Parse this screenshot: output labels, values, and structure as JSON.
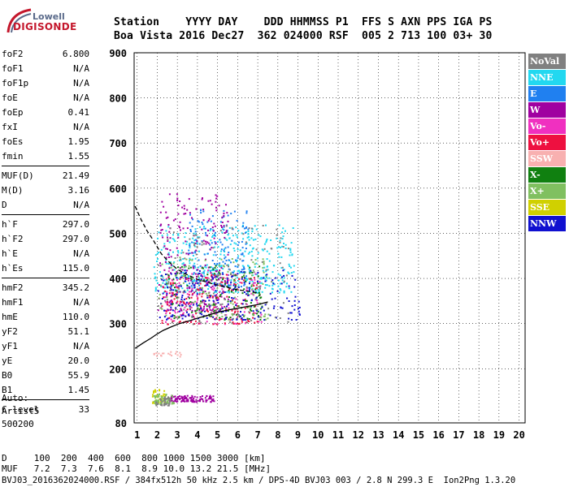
{
  "logo": {
    "line1": "Lowell",
    "line2": "DIGISONDE"
  },
  "header": {
    "labels": "Station    YYYY DAY    DDD HHMMSS P1  FFS S AXN PPS IGA PS",
    "values": "Boa Vista 2016 Dec27  362 024000 RSF  005 2 713 100 03+ 30"
  },
  "params_groups": [
    [
      {
        "k": "foF2",
        "v": "6.800"
      },
      {
        "k": "foF1",
        "v": "N/A"
      },
      {
        "k": "foF1p",
        "v": "N/A"
      },
      {
        "k": "foE",
        "v": "N/A"
      },
      {
        "k": "foEp",
        "v": "0.41"
      },
      {
        "k": "fxI",
        "v": "N/A"
      },
      {
        "k": "foEs",
        "v": "1.95"
      },
      {
        "k": "fmin",
        "v": "1.55"
      }
    ],
    [
      {
        "k": "MUF(D)",
        "v": "21.49"
      },
      {
        "k": "M(D)",
        "v": "3.16"
      },
      {
        "k": "D",
        "v": "N/A"
      }
    ],
    [
      {
        "k": "h`F",
        "v": "297.0"
      },
      {
        "k": "h`F2",
        "v": "297.0"
      },
      {
        "k": "h`E",
        "v": "N/A"
      },
      {
        "k": "h`Es",
        "v": "115.0"
      }
    ],
    [
      {
        "k": "hmF2",
        "v": "345.2"
      },
      {
        "k": "hmF1",
        "v": "N/A"
      },
      {
        "k": "hmE",
        "v": "110.0"
      },
      {
        "k": "yF2",
        "v": "51.1"
      },
      {
        "k": "yF1",
        "v": "N/A"
      },
      {
        "k": "yE",
        "v": "20.0"
      },
      {
        "k": "B0",
        "v": "55.9"
      },
      {
        "k": "B1",
        "v": "1.45"
      }
    ],
    [
      {
        "k": "C-level",
        "v": "33"
      }
    ]
  ],
  "auto": {
    "line1": "Auto:",
    "line2": "Artist5",
    "line3": "500200"
  },
  "legend": [
    {
      "label": "NoVal",
      "color": "#808080"
    },
    {
      "label": "NNE",
      "color": "#22d8f0"
    },
    {
      "label": "E",
      "color": "#2080f0"
    },
    {
      "label": "W",
      "color": "#a000a0"
    },
    {
      "label": "Vo-",
      "color": "#f030c0"
    },
    {
      "label": "Vo+",
      "color": "#ee1040"
    },
    {
      "label": "SSW",
      "color": "#f8b0b0"
    },
    {
      "label": "X-",
      "color": "#108010"
    },
    {
      "label": "X+",
      "color": "#80c060"
    },
    {
      "label": "SSE",
      "color": "#d0d000"
    },
    {
      "label": "NNW",
      "color": "#1010d0"
    }
  ],
  "chart_data": {
    "type": "scatter",
    "x_ticks": [
      "1",
      "2",
      "3",
      "4",
      "5",
      "6",
      "7",
      "8",
      "9",
      "10",
      "11",
      "12",
      "13",
      "14",
      "15",
      "16",
      "17",
      "18",
      "19",
      "20"
    ],
    "y_ticks": [
      "80",
      "200",
      "300",
      "400",
      "500",
      "600",
      "700",
      "800",
      "900"
    ],
    "xlim": [
      0.85,
      20.3
    ],
    "ylim": [
      80,
      900
    ],
    "grid": true,
    "legend_position": "right",
    "clusters": [
      {
        "series": "NNE",
        "x_range": [
          1.8,
          8.8
        ],
        "y_range": [
          370,
          520
        ],
        "count": 420
      },
      {
        "series": "E",
        "x_range": [
          3.5,
          6.5
        ],
        "y_range": [
          380,
          560
        ],
        "count": 160
      },
      {
        "series": "W",
        "x_range": [
          2.0,
          5.5
        ],
        "y_range": [
          330,
          590
        ],
        "count": 260
      },
      {
        "series": "Vo-",
        "x_range": [
          2.3,
          7.2
        ],
        "y_range": [
          300,
          420
        ],
        "count": 140
      },
      {
        "series": "Vo+",
        "x_range": [
          2.2,
          7.0
        ],
        "y_range": [
          300,
          410
        ],
        "count": 160
      },
      {
        "series": "X-",
        "x_range": [
          2.4,
          7.2
        ],
        "y_range": [
          310,
          430
        ],
        "count": 140
      },
      {
        "series": "X+",
        "x_range": [
          2.0,
          7.5
        ],
        "y_range": [
          310,
          450
        ],
        "count": 120
      },
      {
        "series": "NNW",
        "x_range": [
          2.0,
          9.2
        ],
        "y_range": [
          310,
          420
        ],
        "count": 220
      },
      {
        "series": "NoVal",
        "x_range": [
          2.0,
          8.5
        ],
        "y_range": [
          300,
          520
        ],
        "count": 120
      },
      {
        "series": "SSE",
        "x_range": [
          1.7,
          2.4
        ],
        "y_range": [
          125,
          155
        ],
        "count": 40
      },
      {
        "series": "W",
        "x_range": [
          2.5,
          4.8
        ],
        "y_range": [
          128,
          142
        ],
        "count": 110
      },
      {
        "series": "X+",
        "x_range": [
          1.8,
          2.8
        ],
        "y_range": [
          123,
          145
        ],
        "count": 60
      },
      {
        "series": "NoVal",
        "x_range": [
          1.9,
          2.6
        ],
        "y_range": [
          120,
          140
        ],
        "count": 40
      },
      {
        "series": "SSW",
        "x_range": [
          1.8,
          3.2
        ],
        "y_range": [
          228,
          240
        ],
        "count": 20
      }
    ],
    "curves": [
      {
        "name": "dashed",
        "style": "dashed",
        "points": [
          [
            0.9,
            560
          ],
          [
            1.2,
            530
          ],
          [
            1.5,
            505
          ],
          [
            1.8,
            485
          ],
          [
            2.0,
            470
          ],
          [
            2.2,
            455
          ],
          [
            2.5,
            440
          ],
          [
            3.0,
            420
          ],
          [
            3.5,
            408
          ],
          [
            4.0,
            398
          ],
          [
            5.0,
            385
          ],
          [
            6.0,
            375
          ],
          [
            7.0,
            368
          ]
        ]
      },
      {
        "name": "solid",
        "style": "solid",
        "points": [
          [
            0.9,
            245
          ],
          [
            1.3,
            257
          ],
          [
            1.7,
            268
          ],
          [
            2.0,
            277
          ],
          [
            2.3,
            285
          ],
          [
            2.7,
            293
          ],
          [
            3.1,
            300
          ],
          [
            3.6,
            306
          ],
          [
            4.0,
            312
          ],
          [
            4.5,
            318
          ],
          [
            5.0,
            325
          ],
          [
            5.5,
            330
          ],
          [
            6.0,
            334
          ],
          [
            6.5,
            338
          ],
          [
            7.0,
            342
          ],
          [
            7.5,
            348
          ]
        ]
      }
    ]
  },
  "footer": {
    "line1": "D     100  200  400  600  800 1000 1500 3000 [km]",
    "line2": "MUF   7.2  7.3  7.6  8.1  8.9 10.0 13.2 21.5 [MHz]",
    "line3": "BVJ03_2016362024000.RSF / 384fx512h 50 kHz 2.5 km / DPS-4D BVJ03 003 / 2.8 N 299.3 E  Ion2Png 1.3.20"
  }
}
